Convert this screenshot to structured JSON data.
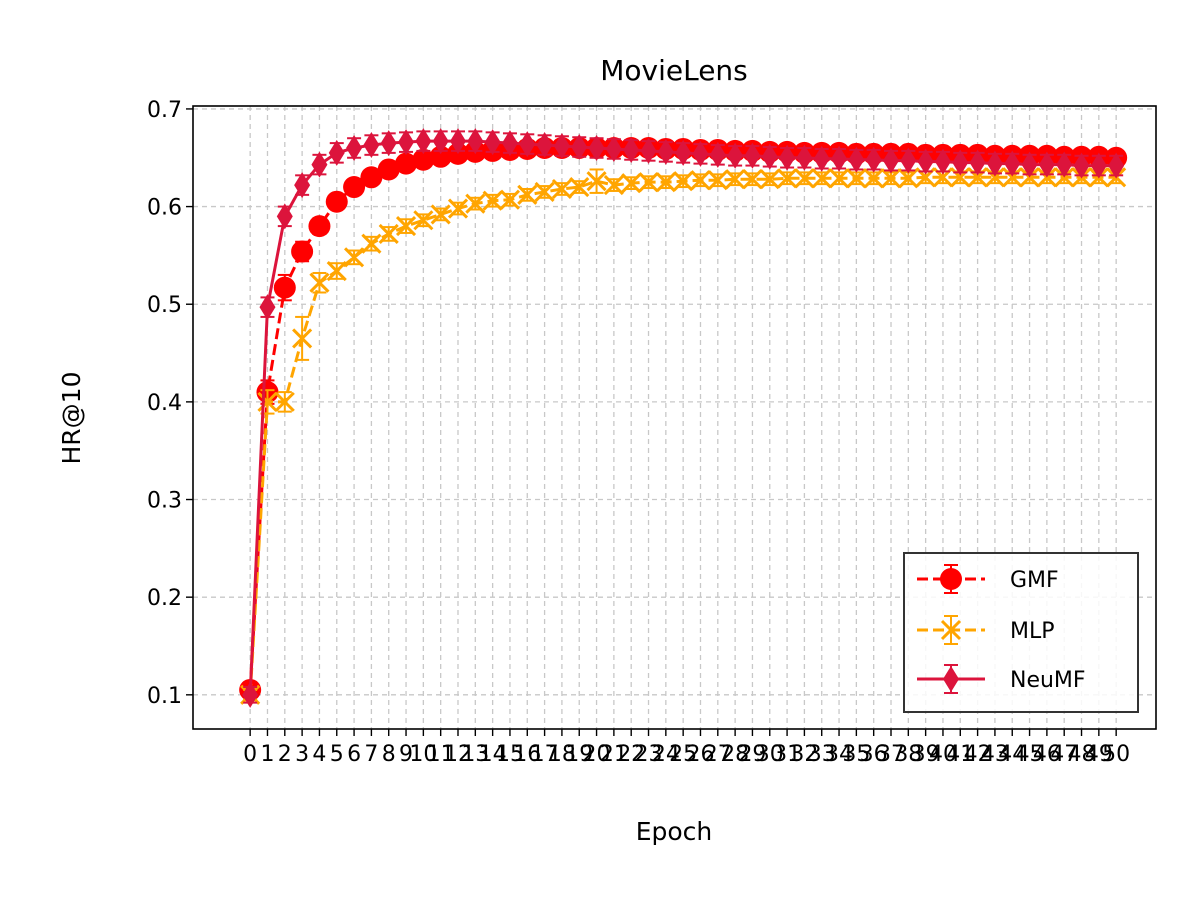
{
  "chart_data": {
    "type": "line",
    "title": "MovieLens",
    "xlabel": "Epoch",
    "ylabel": "HR@10",
    "xlim": [
      -3.3,
      52.3
    ],
    "ylim": [
      0.065,
      0.703
    ],
    "yticks": [
      0.1,
      0.2,
      0.3,
      0.4,
      0.5,
      0.6,
      0.7
    ],
    "ytick_labels": [
      "0.1",
      "0.2",
      "0.3",
      "0.4",
      "0.5",
      "0.6",
      "0.7"
    ],
    "x": [
      0,
      1,
      2,
      3,
      4,
      5,
      6,
      7,
      8,
      9,
      10,
      11,
      12,
      13,
      14,
      15,
      16,
      17,
      18,
      19,
      20,
      21,
      22,
      23,
      24,
      25,
      26,
      27,
      28,
      29,
      30,
      31,
      32,
      33,
      34,
      35,
      36,
      37,
      38,
      39,
      40,
      41,
      42,
      43,
      44,
      45,
      46,
      47,
      48,
      49,
      50
    ],
    "x_tick_labels": [
      "0",
      "1",
      "2",
      "3",
      "4",
      "5",
      "6",
      "7",
      "8",
      "9",
      "10",
      "11",
      "12",
      "13",
      "14",
      "15",
      "16",
      "17",
      "18",
      "19",
      "20",
      "21",
      "22",
      "23",
      "24",
      "25",
      "26",
      "27",
      "28",
      "29",
      "30",
      "31",
      "32",
      "33",
      "34",
      "35",
      "36",
      "37",
      "38",
      "39",
      "40",
      "41",
      "42",
      "43",
      "44",
      "45",
      "46",
      "47",
      "48",
      "49",
      "50"
    ],
    "grid": true,
    "legend_position": "lower-right",
    "series": [
      {
        "name": "GMF",
        "color": "#ff0000",
        "linestyle": "dashed",
        "marker": "circle",
        "values": [
          0.105,
          0.41,
          0.517,
          0.554,
          0.58,
          0.605,
          0.62,
          0.63,
          0.638,
          0.644,
          0.648,
          0.651,
          0.654,
          0.656,
          0.657,
          0.658,
          0.659,
          0.66,
          0.66,
          0.66,
          0.66,
          0.66,
          0.66,
          0.66,
          0.659,
          0.659,
          0.658,
          0.658,
          0.657,
          0.657,
          0.656,
          0.656,
          0.655,
          0.655,
          0.655,
          0.654,
          0.654,
          0.654,
          0.654,
          0.653,
          0.653,
          0.653,
          0.653,
          0.652,
          0.652,
          0.652,
          0.652,
          0.651,
          0.651,
          0.651,
          0.65
        ],
        "errors": [
          0.005,
          0.012,
          0.013,
          0.01,
          0.008,
          0.007,
          0.006,
          0.006,
          0.005,
          0.005,
          0.005,
          0.005,
          0.005,
          0.005,
          0.005,
          0.005,
          0.005,
          0.005,
          0.005,
          0.005,
          0.005,
          0.005,
          0.005,
          0.005,
          0.005,
          0.005,
          0.005,
          0.005,
          0.005,
          0.005,
          0.005,
          0.005,
          0.005,
          0.005,
          0.005,
          0.005,
          0.005,
          0.005,
          0.005,
          0.005,
          0.005,
          0.005,
          0.005,
          0.005,
          0.005,
          0.005,
          0.005,
          0.005,
          0.005,
          0.005,
          0.005
        ]
      },
      {
        "name": "MLP",
        "color": "#ffa500",
        "linestyle": "dashed",
        "marker": "x",
        "values": [
          0.1,
          0.4,
          0.4,
          0.465,
          0.522,
          0.534,
          0.548,
          0.562,
          0.572,
          0.58,
          0.586,
          0.592,
          0.598,
          0.603,
          0.606,
          0.607,
          0.612,
          0.615,
          0.618,
          0.62,
          0.626,
          0.622,
          0.624,
          0.625,
          0.625,
          0.626,
          0.627,
          0.627,
          0.628,
          0.628,
          0.628,
          0.629,
          0.629,
          0.629,
          0.629,
          0.629,
          0.629,
          0.629,
          0.629,
          0.63,
          0.63,
          0.63,
          0.63,
          0.63,
          0.63,
          0.63,
          0.63,
          0.63,
          0.63,
          0.63,
          0.63
        ],
        "errors": [
          0.005,
          0.012,
          0.01,
          0.022,
          0.01,
          0.008,
          0.007,
          0.007,
          0.007,
          0.007,
          0.006,
          0.006,
          0.006,
          0.006,
          0.006,
          0.006,
          0.006,
          0.006,
          0.006,
          0.006,
          0.012,
          0.006,
          0.006,
          0.006,
          0.006,
          0.006,
          0.006,
          0.006,
          0.006,
          0.006,
          0.006,
          0.006,
          0.006,
          0.006,
          0.006,
          0.006,
          0.006,
          0.006,
          0.006,
          0.006,
          0.006,
          0.006,
          0.006,
          0.006,
          0.006,
          0.006,
          0.006,
          0.006,
          0.006,
          0.006,
          0.006
        ]
      },
      {
        "name": "NeuMF",
        "color": "#dc143c",
        "linestyle": "solid",
        "marker": "diamond",
        "values": [
          0.1,
          0.497,
          0.59,
          0.622,
          0.643,
          0.655,
          0.66,
          0.663,
          0.665,
          0.666,
          0.667,
          0.667,
          0.667,
          0.667,
          0.666,
          0.665,
          0.664,
          0.663,
          0.662,
          0.661,
          0.66,
          0.659,
          0.658,
          0.657,
          0.656,
          0.655,
          0.654,
          0.653,
          0.652,
          0.652,
          0.651,
          0.65,
          0.65,
          0.649,
          0.649,
          0.648,
          0.648,
          0.647,
          0.647,
          0.646,
          0.646,
          0.645,
          0.645,
          0.644,
          0.644,
          0.643,
          0.643,
          0.643,
          0.642,
          0.642,
          0.642
        ],
        "errors": [
          0.008,
          0.01,
          0.01,
          0.01,
          0.01,
          0.01,
          0.01,
          0.01,
          0.01,
          0.01,
          0.01,
          0.01,
          0.01,
          0.01,
          0.01,
          0.01,
          0.01,
          0.01,
          0.01,
          0.01,
          0.01,
          0.01,
          0.01,
          0.01,
          0.01,
          0.01,
          0.01,
          0.01,
          0.01,
          0.01,
          0.01,
          0.01,
          0.01,
          0.01,
          0.01,
          0.01,
          0.01,
          0.01,
          0.01,
          0.01,
          0.01,
          0.01,
          0.01,
          0.01,
          0.01,
          0.01,
          0.01,
          0.01,
          0.01,
          0.01,
          0.01
        ]
      }
    ]
  }
}
